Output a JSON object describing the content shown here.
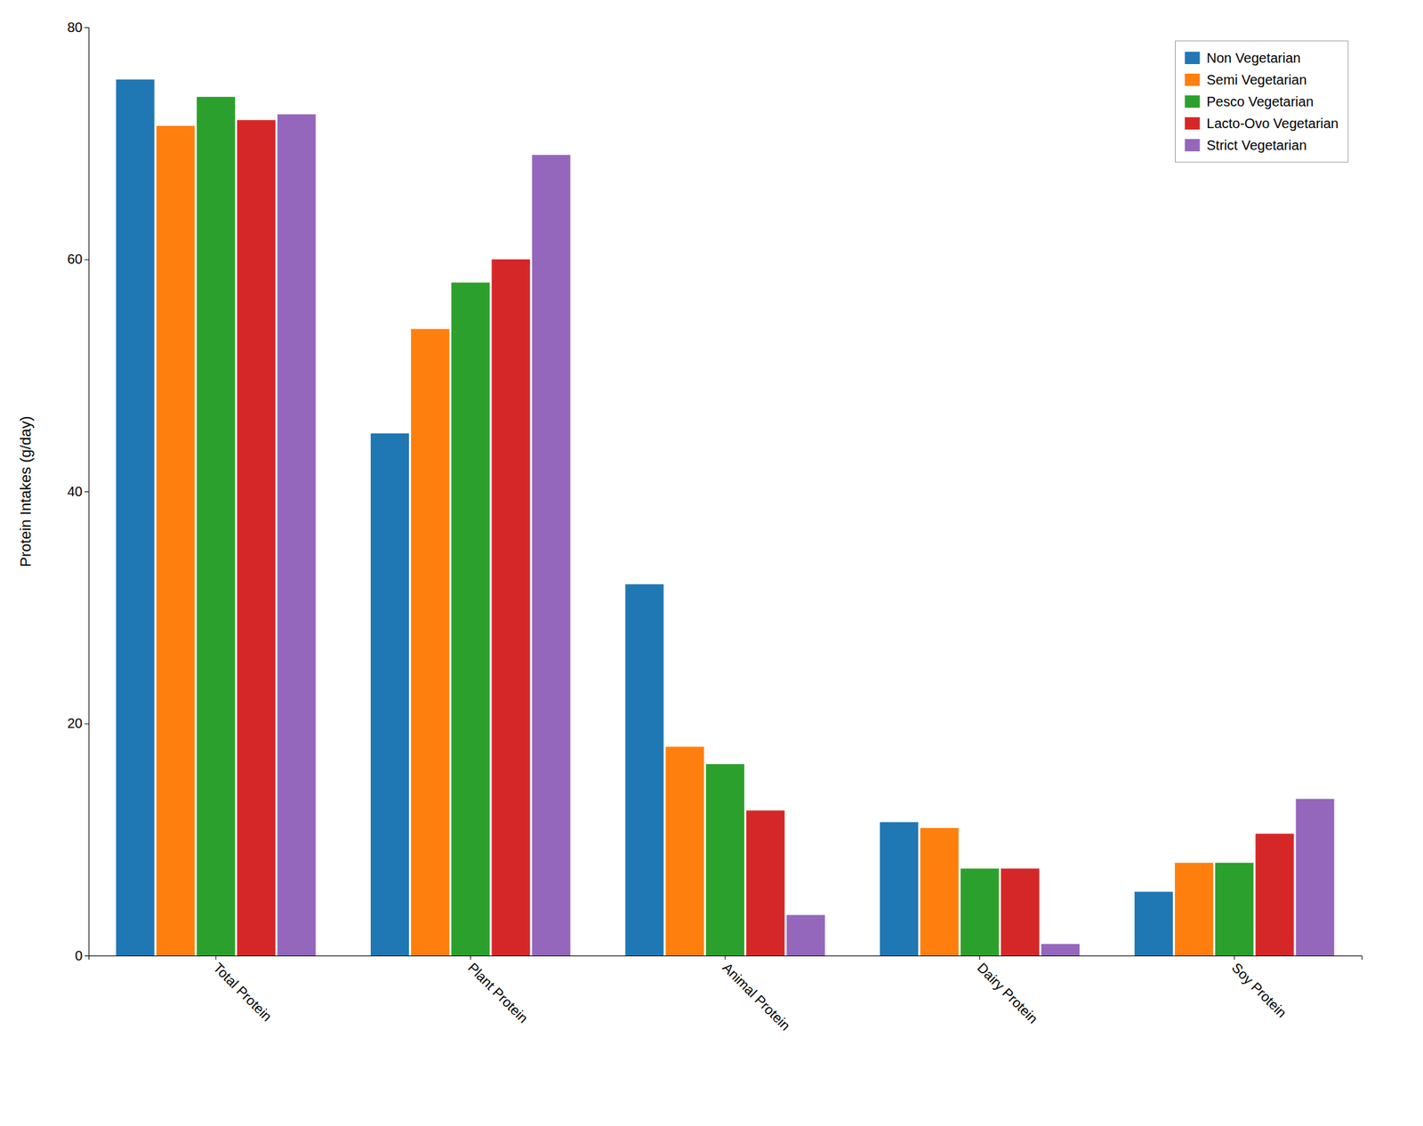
{
  "chart_data": {
    "type": "bar",
    "y_label": "Protein Intakes (g/day)",
    "categories": [
      "Total Protein",
      "Plant Protein",
      "Animal Protein",
      "Dairy Protein",
      "Soy Protein"
    ],
    "series": [
      {
        "name": "Non Vegetarian",
        "values": [
          75.5,
          45.0,
          32.0,
          11.5,
          5.5
        ]
      },
      {
        "name": "Semi Vegetarian",
        "values": [
          71.5,
          54.0,
          18.0,
          11.0,
          8.0
        ]
      },
      {
        "name": "Pesco Vegetarian",
        "values": [
          74.0,
          58.0,
          16.5,
          7.5,
          8.0
        ]
      },
      {
        "name": "Lacto-Ovo Vegetarian",
        "values": [
          72.0,
          60.0,
          12.5,
          7.5,
          10.5
        ]
      },
      {
        "name": "Strict Vegetarian",
        "values": [
          72.5,
          69.0,
          3.5,
          1.0,
          13.5
        ]
      }
    ],
    "ylim": [
      0,
      80
    ],
    "yticks": [
      0,
      20,
      40,
      60,
      80
    ],
    "grid": false,
    "legend": "upper right"
  }
}
